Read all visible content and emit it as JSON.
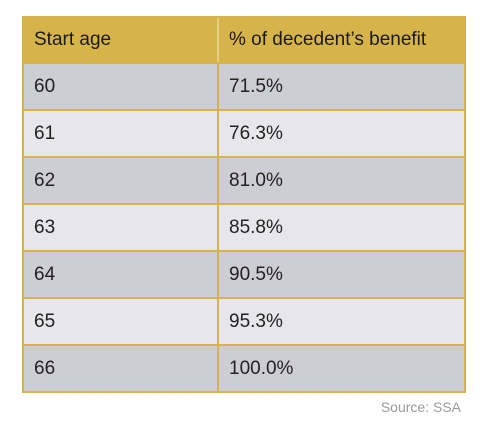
{
  "table": {
    "headers": {
      "start_age": "Start age",
      "percent": "% of decedent’s benefit"
    },
    "rows": [
      {
        "age": "60",
        "percent": "71.5%"
      },
      {
        "age": "61",
        "percent": "76.3%"
      },
      {
        "age": "62",
        "percent": "81.0%"
      },
      {
        "age": "63",
        "percent": "85.8%"
      },
      {
        "age": "64",
        "percent": "90.5%"
      },
      {
        "age": "65",
        "percent": "95.3%"
      },
      {
        "age": "66",
        "percent": "100.0%"
      }
    ]
  },
  "source": "Source: SSA",
  "colors": {
    "header_gold": "#d6b44a",
    "row_dark": "#cdcdd6",
    "row_light": "#e6e6ec"
  }
}
